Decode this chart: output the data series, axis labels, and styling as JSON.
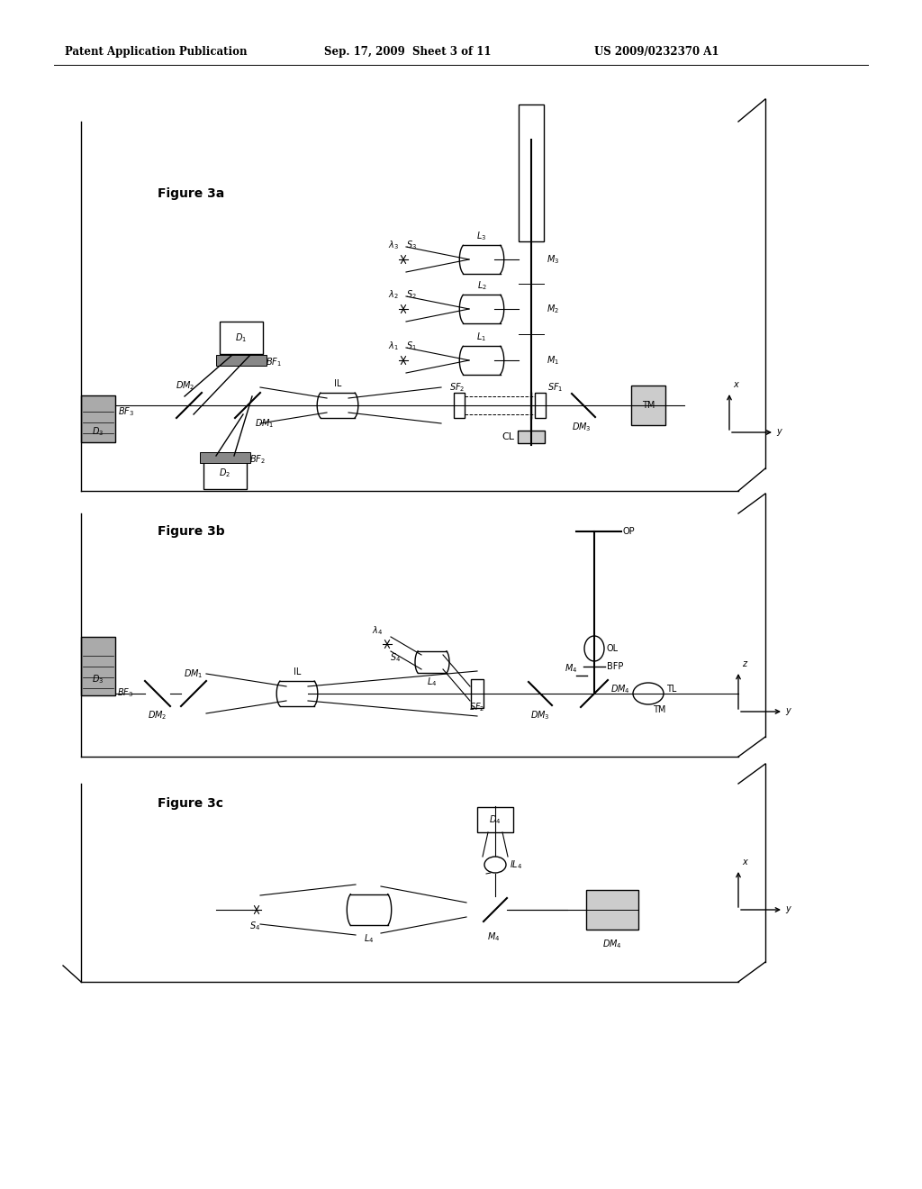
{
  "title_left": "Patent Application Publication",
  "title_mid": "Sep. 17, 2009  Sheet 3 of 11",
  "title_right": "US 2009/0232370 A1",
  "bg_color": "#ffffff",
  "fig3a_label": "Figure 3a",
  "fig3b_label": "Figure 3b",
  "fig3c_label": "Figure 3c"
}
